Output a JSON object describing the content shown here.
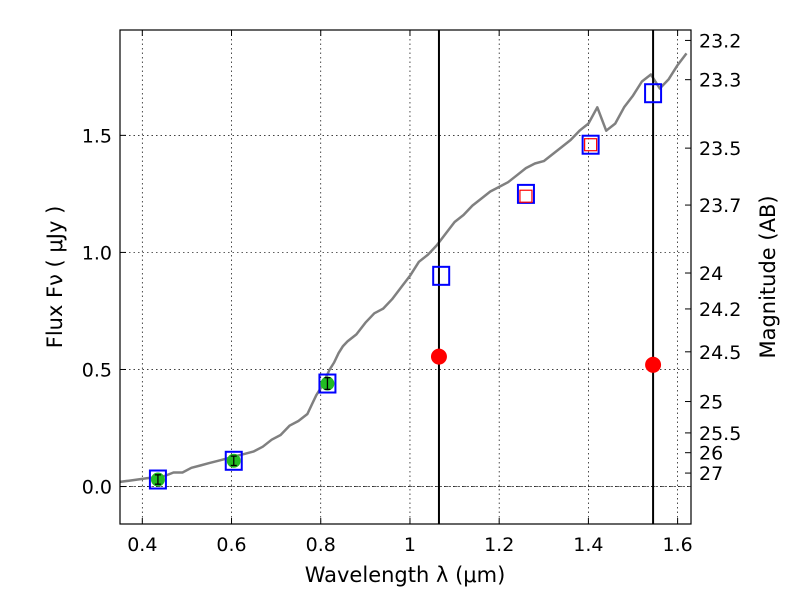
{
  "chart_data": {
    "type": "scatter",
    "title": "",
    "xlabel": "Wavelength  λ (μm)",
    "ylabel": "Flux  Fν  ( μJy )",
    "y2label": "Magnitude (AB)",
    "xlim": [
      0.35,
      1.63
    ],
    "ylim": [
      -0.16,
      1.95
    ],
    "grid": true,
    "x_ticks": [
      {
        "value": 0.4,
        "label": "0.4"
      },
      {
        "value": 0.6,
        "label": "0.6"
      },
      {
        "value": 0.8,
        "label": "0.8"
      },
      {
        "value": 1.0,
        "label": "1"
      },
      {
        "value": 1.2,
        "label": "1.2"
      },
      {
        "value": 1.4,
        "label": "1.4"
      },
      {
        "value": 1.6,
        "label": "1.6"
      }
    ],
    "y_ticks": [
      {
        "value": 0.0,
        "label": "0.0"
      },
      {
        "value": 0.5,
        "label": "0.5"
      },
      {
        "value": 1.0,
        "label": "1.0"
      },
      {
        "value": 1.5,
        "label": "1.5"
      }
    ],
    "mag_ticks": [
      {
        "mag": 23.2,
        "label": "23.2"
      },
      {
        "mag": 23.3,
        "label": "23.3"
      },
      {
        "mag": 23.5,
        "label": "23.5"
      },
      {
        "mag": 23.7,
        "label": "23.7"
      },
      {
        "mag": 24,
        "label": "24"
      },
      {
        "mag": 24.2,
        "label": "24.2"
      },
      {
        "mag": 24.5,
        "label": "24.5"
      },
      {
        "mag": 25,
        "label": "25"
      },
      {
        "mag": 25.5,
        "label": "25.5"
      },
      {
        "mag": 26,
        "label": "26"
      },
      {
        "mag": 27,
        "label": "27"
      }
    ],
    "vertical_lines": [
      1.065,
      1.545
    ],
    "series": [
      {
        "kind": "model-spectrum",
        "color": "#808080",
        "x": [
          0.35,
          0.37,
          0.39,
          0.41,
          0.43,
          0.45,
          0.47,
          0.49,
          0.51,
          0.53,
          0.55,
          0.57,
          0.59,
          0.61,
          0.63,
          0.65,
          0.67,
          0.69,
          0.71,
          0.73,
          0.75,
          0.77,
          0.78,
          0.79,
          0.8,
          0.81,
          0.82,
          0.83,
          0.84,
          0.85,
          0.86,
          0.88,
          0.9,
          0.92,
          0.94,
          0.96,
          0.98,
          1.0,
          1.02,
          1.04,
          1.06,
          1.08,
          1.1,
          1.12,
          1.14,
          1.16,
          1.18,
          1.2,
          1.22,
          1.24,
          1.26,
          1.28,
          1.3,
          1.32,
          1.34,
          1.36,
          1.38,
          1.4,
          1.42,
          1.44,
          1.46,
          1.48,
          1.5,
          1.52,
          1.54,
          1.56,
          1.58,
          1.6,
          1.62
        ],
        "y": [
          0.02,
          0.025,
          0.03,
          0.035,
          0.04,
          0.045,
          0.06,
          0.06,
          0.08,
          0.09,
          0.1,
          0.11,
          0.12,
          0.13,
          0.14,
          0.15,
          0.17,
          0.2,
          0.22,
          0.26,
          0.28,
          0.31,
          0.35,
          0.39,
          0.42,
          0.46,
          0.5,
          0.53,
          0.57,
          0.6,
          0.62,
          0.65,
          0.7,
          0.74,
          0.76,
          0.8,
          0.85,
          0.9,
          0.96,
          0.99,
          1.03,
          1.08,
          1.13,
          1.16,
          1.2,
          1.23,
          1.26,
          1.28,
          1.3,
          1.33,
          1.36,
          1.38,
          1.39,
          1.42,
          1.45,
          1.48,
          1.52,
          1.55,
          1.62,
          1.52,
          1.55,
          1.62,
          1.67,
          1.73,
          1.76,
          1.7,
          1.74,
          1.8,
          1.85
        ]
      },
      {
        "kind": "model-photometry",
        "marker": "open-square",
        "color": "#0000ff",
        "x": [
          0.435,
          0.605,
          0.815,
          1.07,
          1.26,
          1.405,
          1.545
        ],
        "y": [
          0.03,
          0.11,
          0.44,
          0.9,
          1.25,
          1.46,
          1.68
        ]
      },
      {
        "kind": "secondary-photometry",
        "marker": "open-square",
        "color": "#ff0000",
        "x": [
          1.26,
          1.405
        ],
        "y": [
          1.24,
          1.46
        ]
      },
      {
        "kind": "detections",
        "marker": "filled-circle",
        "color": "#22bb22",
        "x": [
          0.435,
          0.605,
          0.815
        ],
        "y": [
          0.03,
          0.11,
          0.44
        ],
        "err": [
          0.02,
          0.02,
          0.025
        ]
      },
      {
        "kind": "red-points",
        "marker": "filled-circle",
        "color": "#ff0000",
        "x": [
          1.065,
          1.545
        ],
        "y": [
          0.555,
          0.52
        ]
      }
    ]
  }
}
